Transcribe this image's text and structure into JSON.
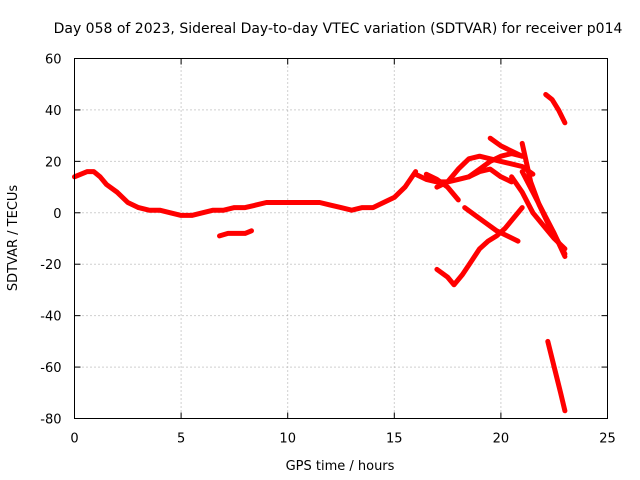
{
  "chart_data": {
    "type": "line",
    "title": "Day 058 of 2023, Sidereal Day-to-day VTEC variation (SDTVAR) for receiver p014",
    "xlabel": "GPS time / hours",
    "ylabel": "SDTVAR / TECUs",
    "xlim": [
      0,
      25
    ],
    "ylim": [
      -80,
      60
    ],
    "xticks": [
      "0",
      "5",
      "10",
      "15",
      "20",
      "25"
    ],
    "yticks": [
      "-80",
      "-60",
      "-40",
      "-20",
      "0",
      "20",
      "40",
      "60"
    ],
    "grid": true,
    "legend": "none",
    "color": "#ff0000",
    "series": [
      {
        "x": [
          0.0,
          0.3,
          0.6,
          0.9,
          1.2,
          1.5,
          2.0,
          2.5,
          3.0,
          3.5,
          4.0,
          4.5,
          5.0,
          5.5,
          6.0,
          6.5,
          7.0,
          7.5,
          8.0,
          8.5,
          9.0,
          9.5,
          10.0,
          10.5,
          11.0,
          11.5,
          12.0,
          12.5,
          13.0,
          13.5,
          14.0,
          14.5,
          15.0,
          15.5,
          16.0
        ],
        "y": [
          14,
          15,
          16,
          16,
          14,
          11,
          8,
          4,
          2,
          1,
          1,
          0,
          -1,
          -1,
          0,
          1,
          1,
          2,
          2,
          3,
          4,
          4,
          4,
          4,
          4,
          4,
          3,
          2,
          1,
          2,
          2,
          4,
          6,
          10,
          16
        ]
      },
      {
        "x": [
          6.8,
          7.2,
          7.6,
          8.0,
          8.3
        ],
        "y": [
          -9,
          -8,
          -8,
          -8,
          -7
        ]
      },
      {
        "x": [
          16.0,
          16.5,
          17.0,
          17.5,
          18.0,
          18.5,
          19.0,
          19.5,
          20.0,
          20.5,
          21.0
        ],
        "y": [
          15,
          13,
          12,
          12,
          13,
          14,
          17,
          20,
          22,
          23,
          22
        ]
      },
      {
        "x": [
          16.5,
          17.0,
          17.5,
          18.0
        ],
        "y": [
          15,
          13,
          10,
          5
        ]
      },
      {
        "x": [
          17.0,
          17.5,
          18.0,
          18.5,
          19.0,
          19.5,
          20.0,
          20.5,
          21.0,
          21.5
        ],
        "y": [
          10,
          12,
          17,
          21,
          22,
          21,
          20,
          19,
          18,
          15
        ]
      },
      {
        "x": [
          18.5,
          19.0,
          19.5,
          20.0,
          20.5
        ],
        "y": [
          14,
          16,
          17,
          14,
          12
        ]
      },
      {
        "x": [
          17.0,
          17.5,
          17.8,
          18.2,
          18.6,
          19.0,
          19.4,
          19.8,
          20.2,
          20.6,
          21.0
        ],
        "y": [
          -22,
          -25,
          -28,
          -24,
          -19,
          -14,
          -11,
          -9,
          -6,
          -2,
          2
        ]
      },
      {
        "x": [
          18.3,
          18.8,
          19.3,
          19.8,
          20.3,
          20.8
        ],
        "y": [
          2,
          -1,
          -4,
          -7,
          -9,
          -11
        ]
      },
      {
        "x": [
          19.5,
          20.0,
          20.5,
          21.0
        ],
        "y": [
          29,
          26,
          24,
          22
        ]
      },
      {
        "x": [
          21.0,
          21.4,
          21.8,
          22.2,
          22.6,
          23.0
        ],
        "y": [
          27,
          12,
          3,
          -4,
          -10,
          -16
        ]
      },
      {
        "x": [
          21.0,
          21.5,
          22.0,
          22.5,
          23.0
        ],
        "y": [
          16,
          8,
          0,
          -8,
          -17
        ]
      },
      {
        "x": [
          20.5,
          21.0,
          21.5,
          22.0,
          22.5,
          23.0
        ],
        "y": [
          14,
          8,
          0,
          -5,
          -10,
          -14
        ]
      },
      {
        "x": [
          22.1,
          22.4,
          22.7,
          23.0
        ],
        "y": [
          46,
          44,
          40,
          35
        ]
      },
      {
        "x": [
          22.2,
          22.5,
          22.8,
          23.0
        ],
        "y": [
          -50,
          -60,
          -70,
          -77
        ]
      }
    ]
  }
}
